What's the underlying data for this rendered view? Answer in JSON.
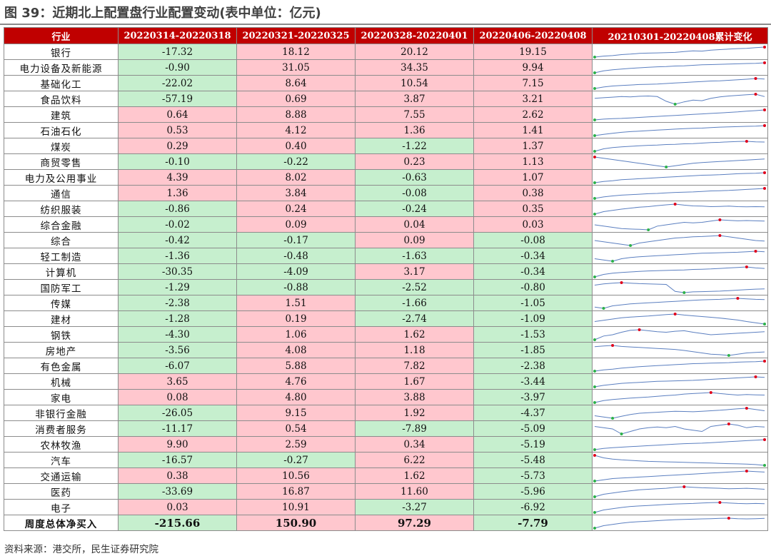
{
  "title": "图 39：近期北上配置盘行业配置变动(表中单位：亿元)",
  "source": "资料来源：港交所，民生证券研究院",
  "colors": {
    "header": "#c00000",
    "positive": "#ffc7ce",
    "negative": "#c6efce",
    "line": "#5b7fc0",
    "max_dot": "#e0001b",
    "min_dot": "#2db14a"
  },
  "headers": [
    "行业",
    "20220314-20220318",
    "20220321-20220325",
    "20220328-20220401",
    "20220406-20220408",
    "20210301-20220408累计变化"
  ],
  "rows": [
    {
      "name": "银行",
      "values": [
        "-17.32",
        "18.12",
        "20.12",
        "19.15"
      ],
      "trend": [
        0,
        4,
        6,
        10,
        12,
        15,
        16,
        17,
        18,
        19,
        22,
        25,
        24,
        28,
        30,
        32,
        34,
        35,
        38,
        40
      ]
    },
    {
      "name": "电力设备及新能源",
      "values": [
        "-0.90",
        "31.05",
        "34.35",
        "9.94"
      ],
      "trend": [
        0,
        8,
        12,
        15,
        18,
        20,
        22,
        24,
        25,
        27,
        28,
        30,
        32,
        33,
        34,
        35,
        36,
        37,
        38,
        40
      ]
    },
    {
      "name": "基础化工",
      "values": [
        "-22.02",
        "8.64",
        "10.54",
        "7.15"
      ],
      "trend": [
        0,
        6,
        10,
        12,
        14,
        16,
        17,
        18,
        20,
        22,
        24,
        26,
        28,
        30,
        31,
        33,
        35,
        37,
        40,
        38
      ]
    },
    {
      "name": "食品饮料",
      "values": [
        "-57.19",
        "0.69",
        "3.87",
        "3.21"
      ],
      "trend": [
        20,
        22,
        24,
        26,
        25,
        27,
        28,
        26,
        10,
        0,
        8,
        14,
        12,
        20,
        25,
        28,
        30,
        32,
        34,
        26
      ]
    },
    {
      "name": "建筑",
      "values": [
        "0.64",
        "8.88",
        "7.55",
        "2.62"
      ],
      "trend": [
        0,
        3,
        5,
        6,
        8,
        10,
        12,
        14,
        16,
        18,
        20,
        22,
        24,
        26,
        28,
        30,
        32,
        35,
        37,
        40
      ]
    },
    {
      "name": "石油石化",
      "values": [
        "0.53",
        "4.12",
        "1.36",
        "1.41"
      ],
      "trend": [
        0,
        5,
        9,
        13,
        16,
        18,
        20,
        22,
        24,
        26,
        28,
        29,
        30,
        32,
        34,
        35,
        36,
        37,
        38,
        40
      ]
    },
    {
      "name": "煤炭",
      "values": [
        "0.29",
        "0.40",
        "-1.22",
        "1.37"
      ],
      "trend": [
        0,
        10,
        15,
        18,
        20,
        22,
        24,
        25,
        27,
        28,
        30,
        31,
        33,
        35,
        36,
        38,
        39,
        40,
        38,
        37
      ]
    },
    {
      "name": "商贸零售",
      "values": [
        "-0.10",
        "-0.22",
        "0.23",
        "1.13"
      ],
      "trend": [
        40,
        35,
        30,
        25,
        20,
        15,
        10,
        5,
        0,
        5,
        10,
        15,
        18,
        20,
        22,
        24,
        26,
        28,
        30,
        32
      ]
    },
    {
      "name": "电力及公用事业",
      "values": [
        "4.39",
        "8.02",
        "-0.63",
        "1.07"
      ],
      "trend": [
        0,
        5,
        8,
        12,
        14,
        16,
        18,
        20,
        22,
        24,
        26,
        28,
        30,
        31,
        32,
        34,
        36,
        37,
        38,
        40
      ]
    },
    {
      "name": "通信",
      "values": [
        "1.36",
        "3.84",
        "-0.08",
        "0.38"
      ],
      "trend": [
        0,
        6,
        10,
        13,
        15,
        17,
        19,
        20,
        22,
        24,
        25,
        26,
        28,
        30,
        31,
        32,
        34,
        36,
        38,
        40
      ]
    },
    {
      "name": "纺织服装",
      "values": [
        "-0.86",
        "0.24",
        "-0.24",
        "0.35"
      ],
      "trend": [
        0,
        10,
        15,
        20,
        24,
        28,
        30,
        34,
        37,
        40,
        36,
        33,
        32,
        30,
        31,
        32,
        30,
        29,
        30,
        29
      ]
    },
    {
      "name": "综合金融",
      "values": [
        "-0.02",
        "0.09",
        "0.04",
        "0.03"
      ],
      "trend": [
        20,
        15,
        10,
        5,
        3,
        2,
        0,
        15,
        20,
        25,
        30,
        28,
        30,
        35,
        40,
        38,
        36,
        37,
        36,
        35
      ]
    },
    {
      "name": "综合",
      "values": [
        "-0.42",
        "-0.17",
        "0.09",
        "-0.08"
      ],
      "trend": [
        20,
        15,
        10,
        5,
        0,
        10,
        15,
        20,
        25,
        30,
        32,
        35,
        36,
        38,
        40,
        35,
        30,
        25,
        20,
        18
      ]
    },
    {
      "name": "轻工制造",
      "values": [
        "-1.36",
        "-0.48",
        "-1.63",
        "-0.34"
      ],
      "trend": [
        10,
        5,
        0,
        10,
        15,
        18,
        20,
        22,
        24,
        26,
        28,
        30,
        32,
        33,
        34,
        35,
        36,
        38,
        40,
        38
      ]
    },
    {
      "name": "计算机",
      "values": [
        "-30.35",
        "-4.09",
        "3.17",
        "-0.34"
      ],
      "trend": [
        0,
        10,
        15,
        18,
        20,
        22,
        24,
        25,
        26,
        27,
        28,
        30,
        31,
        32,
        34,
        36,
        38,
        40,
        36,
        34
      ]
    },
    {
      "name": "国防军工",
      "values": [
        "-1.29",
        "-0.88",
        "-2.52",
        "-0.80"
      ],
      "trend": [
        30,
        35,
        38,
        40,
        38,
        36,
        35,
        34,
        33,
        5,
        0,
        3,
        4,
        5,
        6,
        8,
        10,
        12,
        14,
        15
      ]
    },
    {
      "name": "传媒",
      "values": [
        "-2.38",
        "1.51",
        "-1.66",
        "-1.05"
      ],
      "trend": [
        5,
        0,
        10,
        14,
        18,
        20,
        22,
        24,
        26,
        28,
        30,
        32,
        34,
        35,
        36,
        38,
        40,
        38,
        36,
        35
      ]
    },
    {
      "name": "建材",
      "values": [
        "-1.28",
        "0.19",
        "-2.74",
        "-1.09"
      ],
      "trend": [
        10,
        15,
        20,
        25,
        28,
        30,
        32,
        35,
        38,
        40,
        36,
        33,
        30,
        27,
        24,
        20,
        16,
        10,
        5,
        0
      ]
    },
    {
      "name": "钢铁",
      "values": [
        "-4.30",
        "1.06",
        "1.62",
        "-1.53"
      ],
      "trend": [
        0,
        15,
        20,
        30,
        38,
        40,
        36,
        32,
        30,
        34,
        36,
        30,
        25,
        20,
        22,
        24,
        26,
        28,
        30,
        32
      ]
    },
    {
      "name": "房地产",
      "values": [
        "-3.56",
        "4.08",
        "1.18",
        "-1.85"
      ],
      "trend": [
        35,
        38,
        40,
        36,
        34,
        32,
        30,
        28,
        26,
        24,
        20,
        15,
        10,
        5,
        3,
        0,
        5,
        10,
        12,
        14
      ]
    },
    {
      "name": "有色金属",
      "values": [
        "-6.07",
        "5.88",
        "7.82",
        "-2.38"
      ],
      "trend": [
        0,
        5,
        8,
        12,
        15,
        18,
        20,
        22,
        24,
        26,
        28,
        30,
        31,
        32,
        33,
        34,
        36,
        37,
        38,
        40
      ]
    },
    {
      "name": "机械",
      "values": [
        "3.65",
        "4.76",
        "1.67",
        "-3.44"
      ],
      "trend": [
        0,
        6,
        10,
        14,
        16,
        18,
        20,
        22,
        23,
        24,
        25,
        26,
        28,
        30,
        32,
        34,
        36,
        38,
        40,
        38
      ]
    },
    {
      "name": "家电",
      "values": [
        "0.08",
        "4.80",
        "3.88",
        "-3.97"
      ],
      "trend": [
        0,
        8,
        12,
        15,
        18,
        20,
        22,
        25,
        28,
        30,
        34,
        36,
        38,
        40,
        36,
        33,
        30,
        32,
        31,
        30
      ]
    },
    {
      "name": "非银行金融",
      "values": [
        "-26.05",
        "9.15",
        "1.92",
        "-4.37"
      ],
      "trend": [
        10,
        5,
        0,
        8,
        15,
        20,
        22,
        24,
        26,
        28,
        27,
        26,
        28,
        30,
        32,
        35,
        38,
        40,
        35,
        30
      ]
    },
    {
      "name": "消费者服务",
      "values": [
        "-11.17",
        "0.54",
        "-7.89",
        "-5.09"
      ],
      "trend": [
        30,
        25,
        20,
        0,
        10,
        20,
        25,
        28,
        25,
        30,
        20,
        15,
        10,
        30,
        35,
        40,
        35,
        25,
        30,
        28
      ]
    },
    {
      "name": "农林牧渔",
      "values": [
        "9.90",
        "2.59",
        "0.34",
        "-5.19"
      ],
      "trend": [
        0,
        5,
        8,
        10,
        12,
        14,
        16,
        18,
        20,
        22,
        24,
        25,
        26,
        28,
        30,
        32,
        34,
        36,
        38,
        40
      ]
    },
    {
      "name": "汽车",
      "values": [
        "-16.57",
        "-0.27",
        "6.22",
        "-5.48"
      ],
      "trend": [
        40,
        30,
        25,
        22,
        20,
        18,
        16,
        15,
        14,
        13,
        12,
        11,
        10,
        9,
        8,
        7,
        6,
        5,
        3,
        0
      ]
    },
    {
      "name": "交通运输",
      "values": [
        "0.38",
        "10.56",
        "1.62",
        "-5.73"
      ],
      "trend": [
        0,
        5,
        10,
        12,
        14,
        16,
        18,
        20,
        22,
        24,
        26,
        28,
        30,
        32,
        34,
        36,
        38,
        40,
        38,
        36
      ]
    },
    {
      "name": "医药",
      "values": [
        "-33.69",
        "16.87",
        "11.60",
        "-5.96"
      ],
      "trend": [
        0,
        10,
        15,
        20,
        24,
        28,
        30,
        32,
        34,
        38,
        40,
        38,
        36,
        35,
        34,
        32,
        33,
        34,
        32,
        30
      ]
    },
    {
      "name": "电子",
      "values": [
        "0.03",
        "10.91",
        "-3.27",
        "-6.92"
      ],
      "trend": [
        0,
        10,
        15,
        20,
        24,
        26,
        28,
        30,
        32,
        34,
        35,
        36,
        38,
        39,
        40,
        38,
        36,
        35,
        36,
        35
      ]
    }
  ],
  "total": {
    "name": "周度总体净买入",
    "values": [
      "-215.66",
      "150.90",
      "97.29",
      "-7.79"
    ],
    "trend": [
      0,
      10,
      15,
      20,
      24,
      26,
      28,
      30,
      32,
      34,
      35,
      36,
      37,
      38,
      39,
      40,
      38,
      37,
      38,
      39
    ]
  }
}
